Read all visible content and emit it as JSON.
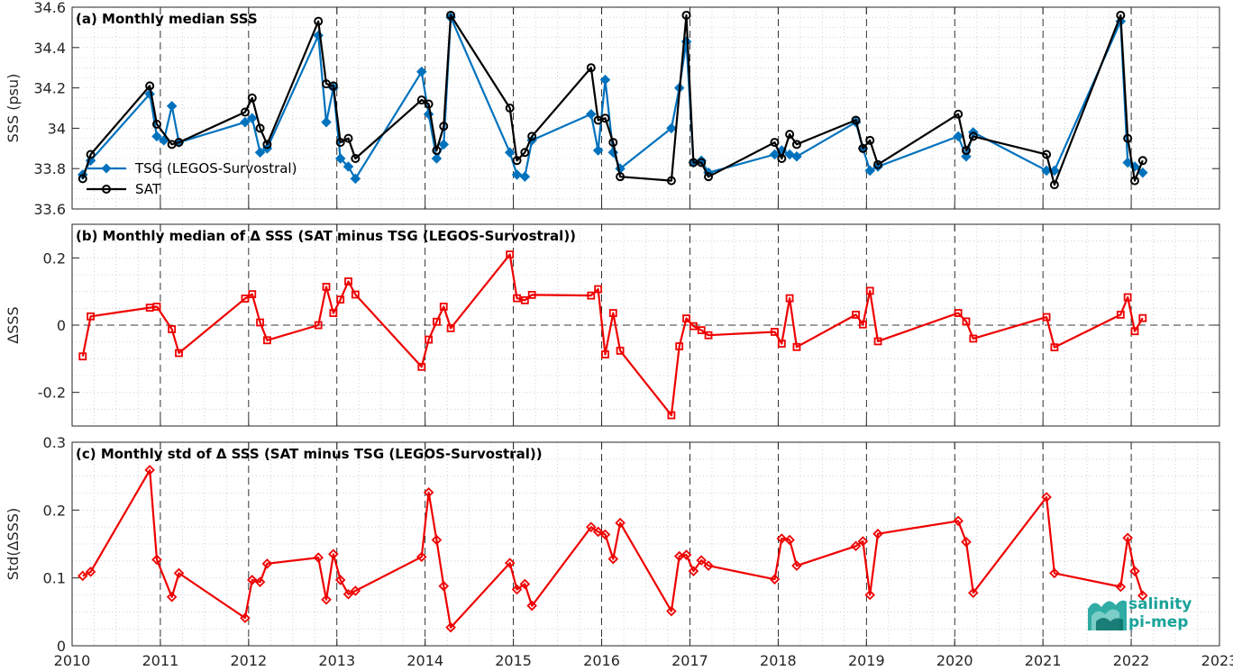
{
  "colors": {
    "tsg": "#0072bd",
    "sat": "#000000",
    "delta": "#ee0000",
    "grid": "#c8c8c8",
    "logo": "#1aa39a"
  },
  "logo": {
    "line1": "salinity",
    "line2": "pi-mep"
  },
  "chart_data": [
    {
      "type": "line",
      "title": "(a) Monthly median SSS",
      "ylabel": "SSS (psu)",
      "xlim": [
        2010,
        2023
      ],
      "ylim": [
        33.6,
        34.6
      ],
      "yticks": [
        33.6,
        33.8,
        34,
        34.2,
        34.4,
        34.6
      ],
      "ytick_labels": [
        "33.6",
        "33.8",
        "34",
        "34.2",
        "34.4",
        "34.6"
      ],
      "grid": "dotted minor grid, dashed year lines",
      "legend_position": "bottom-left",
      "series": [
        {
          "name": "TSG (LEGOS-Survostral)",
          "marker": "diamond",
          "color_key": "tsg",
          "x": [
            2010.12,
            2010.21,
            2010.88,
            2010.96,
            2011.04,
            2011.13,
            2011.21,
            2011.96,
            2012.04,
            2012.13,
            2012.21,
            2012.79,
            2012.88,
            2012.96,
            2013.04,
            2013.13,
            2013.21,
            2013.96,
            2014.04,
            2014.13,
            2014.21,
            2014.29,
            2014.96,
            2015.04,
            2015.13,
            2015.21,
            2015.88,
            2015.96,
            2016.04,
            2016.13,
            2016.21,
            2016.79,
            2016.88,
            2016.96,
            2017.04,
            2017.13,
            2017.21,
            2017.96,
            2018.04,
            2018.13,
            2018.21,
            2018.88,
            2018.96,
            2019.04,
            2019.13,
            2020.04,
            2020.13,
            2020.21,
            2021.04,
            2021.13,
            2021.88,
            2021.96,
            2022.04,
            2022.13
          ],
          "values": [
            33.77,
            33.84,
            34.17,
            33.96,
            33.94,
            34.11,
            33.93,
            34.03,
            34.05,
            33.88,
            33.9,
            34.46,
            34.03,
            34.2,
            33.85,
            33.81,
            33.75,
            34.28,
            34.07,
            33.85,
            33.92,
            34.55,
            33.88,
            33.77,
            33.76,
            33.94,
            34.07,
            33.89,
            34.24,
            33.88,
            33.8,
            34.0,
            34.2,
            34.43,
            33.83,
            33.84,
            33.78,
            33.87,
            33.89,
            33.87,
            33.86,
            34.03,
            33.9,
            33.79,
            33.81,
            33.96,
            33.86,
            33.98,
            33.79,
            33.79,
            34.53,
            33.83,
            33.81,
            33.78
          ]
        },
        {
          "name": "SAT",
          "marker": "circle",
          "color_key": "sat",
          "x": [
            2010.12,
            2010.21,
            2010.88,
            2010.96,
            2011.13,
            2011.21,
            2011.96,
            2012.04,
            2012.13,
            2012.21,
            2012.79,
            2012.88,
            2012.96,
            2013.04,
            2013.13,
            2013.21,
            2013.96,
            2014.04,
            2014.13,
            2014.21,
            2014.29,
            2014.96,
            2015.04,
            2015.13,
            2015.21,
            2015.88,
            2015.96,
            2016.04,
            2016.13,
            2016.21,
            2016.79,
            2016.96,
            2017.04,
            2017.13,
            2017.21,
            2017.96,
            2018.04,
            2018.13,
            2018.21,
            2018.88,
            2018.96,
            2019.04,
            2019.13,
            2020.04,
            2020.13,
            2020.21,
            2021.04,
            2021.13,
            2021.88,
            2021.96,
            2022.04,
            2022.13
          ],
          "values": [
            33.75,
            33.87,
            34.21,
            34.02,
            33.92,
            33.93,
            34.08,
            34.15,
            34.0,
            33.92,
            34.53,
            34.22,
            34.21,
            33.93,
            33.95,
            33.85,
            34.14,
            34.12,
            33.89,
            34.01,
            34.56,
            34.1,
            33.84,
            33.88,
            33.96,
            34.3,
            34.04,
            34.05,
            33.93,
            33.76,
            33.74,
            34.56,
            33.83,
            33.83,
            33.76,
            33.93,
            33.85,
            33.97,
            33.92,
            34.04,
            33.9,
            33.94,
            33.82,
            34.07,
            33.89,
            33.96,
            33.87,
            33.72,
            34.56,
            33.95,
            33.74,
            33.84
          ]
        }
      ]
    },
    {
      "type": "line",
      "title": "(b) Monthly median of Δ SSS (SAT minus TSG (LEGOS-Survostral))",
      "ylabel": "ΔSSS",
      "xlim": [
        2010,
        2023
      ],
      "ylim": [
        -0.3,
        0.3
      ],
      "yticks": [
        -0.2,
        0,
        0.2
      ],
      "ytick_labels": [
        "-0.2",
        "0",
        "0.2"
      ],
      "zero_line": "dashed",
      "series": [
        {
          "marker": "square",
          "color_key": "delta",
          "x": [
            2010.12,
            2010.21,
            2010.88,
            2010.96,
            2011.13,
            2011.21,
            2011.96,
            2012.04,
            2012.13,
            2012.21,
            2012.79,
            2012.88,
            2012.96,
            2013.04,
            2013.13,
            2013.21,
            2013.96,
            2014.04,
            2014.13,
            2014.21,
            2014.29,
            2014.96,
            2015.04,
            2015.13,
            2015.21,
            2015.88,
            2015.96,
            2016.04,
            2016.13,
            2016.21,
            2016.79,
            2016.88,
            2016.96,
            2017.04,
            2017.13,
            2017.21,
            2017.96,
            2018.04,
            2018.13,
            2018.21,
            2018.88,
            2018.96,
            2019.04,
            2019.13,
            2020.04,
            2020.13,
            2020.21,
            2021.04,
            2021.13,
            2021.88,
            2021.96,
            2022.04,
            2022.13
          ],
          "values": [
            -0.093,
            0.026,
            0.052,
            0.055,
            -0.012,
            -0.083,
            0.079,
            0.092,
            0.008,
            -0.045,
            0.0,
            0.114,
            0.036,
            0.076,
            0.13,
            0.091,
            -0.124,
            -0.043,
            0.01,
            0.055,
            -0.009,
            0.21,
            0.08,
            0.074,
            0.09,
            0.088,
            0.107,
            -0.087,
            0.036,
            -0.076,
            -0.268,
            -0.063,
            0.02,
            -0.003,
            -0.015,
            -0.03,
            -0.02,
            -0.055,
            0.08,
            -0.065,
            0.031,
            0.002,
            0.102,
            -0.048,
            0.036,
            0.011,
            -0.04,
            0.024,
            -0.066,
            0.031,
            0.083,
            -0.018,
            0.021
          ]
        }
      ]
    },
    {
      "type": "line",
      "title": "(c) Monthly std of Δ SSS (SAT minus TSG (LEGOS-Survostral))",
      "ylabel": "Std(ΔSSS)",
      "xlim": [
        2010,
        2023
      ],
      "ylim": [
        0,
        0.3
      ],
      "yticks": [
        0,
        0.1,
        0.2,
        0.3
      ],
      "ytick_labels": [
        "0",
        "0.1",
        "0.2",
        "0.3"
      ],
      "xticks": [
        2010,
        2011,
        2012,
        2013,
        2014,
        2015,
        2016,
        2017,
        2018,
        2019,
        2020,
        2021,
        2022,
        2023
      ],
      "xtick_labels": [
        "2010",
        "2011",
        "2012",
        "2013",
        "2014",
        "2015",
        "2016",
        "2017",
        "2018",
        "2019",
        "2020",
        "2021",
        "2022",
        "2023"
      ],
      "series": [
        {
          "marker": "diamond",
          "color_key": "delta",
          "x": [
            2010.12,
            2010.21,
            2010.88,
            2010.96,
            2011.13,
            2011.21,
            2011.96,
            2012.04,
            2012.13,
            2012.21,
            2012.79,
            2012.88,
            2012.96,
            2013.04,
            2013.13,
            2013.21,
            2013.96,
            2014.04,
            2014.13,
            2014.21,
            2014.29,
            2014.96,
            2015.04,
            2015.13,
            2015.21,
            2015.88,
            2015.96,
            2016.04,
            2016.13,
            2016.21,
            2016.79,
            2016.88,
            2016.96,
            2017.04,
            2017.13,
            2017.21,
            2017.96,
            2018.04,
            2018.13,
            2018.21,
            2018.88,
            2018.96,
            2019.04,
            2019.13,
            2020.04,
            2020.13,
            2020.21,
            2021.04,
            2021.13,
            2021.88,
            2021.96,
            2022.04,
            2022.13
          ],
          "values": [
            0.103,
            0.109,
            0.259,
            0.127,
            0.072,
            0.107,
            0.041,
            0.097,
            0.094,
            0.121,
            0.13,
            0.068,
            0.135,
            0.097,
            0.076,
            0.081,
            0.131,
            0.226,
            0.156,
            0.088,
            0.027,
            0.122,
            0.083,
            0.091,
            0.059,
            0.175,
            0.168,
            0.164,
            0.128,
            0.181,
            0.051,
            0.132,
            0.134,
            0.11,
            0.126,
            0.118,
            0.098,
            0.158,
            0.156,
            0.118,
            0.147,
            0.154,
            0.075,
            0.165,
            0.184,
            0.153,
            0.078,
            0.219,
            0.107,
            0.087,
            0.159,
            0.11,
            0.074
          ]
        }
      ]
    }
  ]
}
